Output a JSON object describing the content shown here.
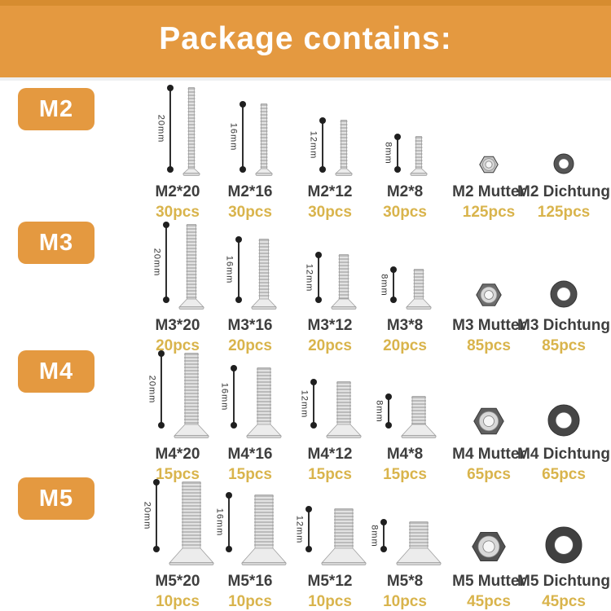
{
  "title": "Package contains:",
  "colors": {
    "banner_orange": "#e49940",
    "badge_orange": "#e49940",
    "title_text": "#ffffff",
    "item_name_text": "#3e3e3e",
    "count_text": "#d9b44c",
    "dimension_line": "#2f2f2f"
  },
  "rows": [
    {
      "badge": "M2",
      "items": [
        {
          "kind": "screw",
          "dim": "20mm",
          "name": "M2*20",
          "count": "30pcs"
        },
        {
          "kind": "screw",
          "dim": "16mm",
          "name": "M2*16",
          "count": "30pcs"
        },
        {
          "kind": "screw",
          "dim": "12mm",
          "name": "M2*12",
          "count": "30pcs"
        },
        {
          "kind": "screw",
          "dim": "8mm",
          "name": "M2*8",
          "count": "30pcs"
        },
        {
          "kind": "nut",
          "name": "M2 Mutter",
          "count": "125pcs"
        },
        {
          "kind": "washer",
          "name": "M2 Dichtung",
          "count": "125pcs"
        }
      ]
    },
    {
      "badge": "M3",
      "items": [
        {
          "kind": "screw",
          "dim": "20mm",
          "name": "M3*20",
          "count": "20pcs"
        },
        {
          "kind": "screw",
          "dim": "16mm",
          "name": "M3*16",
          "count": "20pcs"
        },
        {
          "kind": "screw",
          "dim": "12mm",
          "name": "M3*12",
          "count": "20pcs"
        },
        {
          "kind": "screw",
          "dim": "8mm",
          "name": "M3*8",
          "count": "20pcs"
        },
        {
          "kind": "nut",
          "name": "M3 Mutter",
          "count": "85pcs"
        },
        {
          "kind": "washer",
          "name": "M3 Dichtung",
          "count": "85pcs"
        }
      ]
    },
    {
      "badge": "M4",
      "items": [
        {
          "kind": "screw",
          "dim": "20mm",
          "name": "M4*20",
          "count": "15pcs"
        },
        {
          "kind": "screw",
          "dim": "16mm",
          "name": "M4*16",
          "count": "15pcs"
        },
        {
          "kind": "screw",
          "dim": "12mm",
          "name": "M4*12",
          "count": "15pcs"
        },
        {
          "kind": "screw",
          "dim": "8mm",
          "name": "M4*8",
          "count": "15pcs"
        },
        {
          "kind": "nut",
          "name": "M4 Mutter",
          "count": "65pcs"
        },
        {
          "kind": "washer",
          "name": "M4 Dichtung",
          "count": "65pcs"
        }
      ]
    },
    {
      "badge": "M5",
      "items": [
        {
          "kind": "screw",
          "dim": "20mm",
          "name": "M5*20",
          "count": "10pcs"
        },
        {
          "kind": "screw",
          "dim": "16mm",
          "name": "M5*16",
          "count": "10pcs"
        },
        {
          "kind": "screw",
          "dim": "12mm",
          "name": "M5*12",
          "count": "10pcs"
        },
        {
          "kind": "screw",
          "dim": "8mm",
          "name": "M5*8",
          "count": "10pcs"
        },
        {
          "kind": "nut",
          "name": "M5 Mutter",
          "count": "45pcs"
        },
        {
          "kind": "washer",
          "name": "M5 Dichtung",
          "count": "45pcs"
        }
      ]
    }
  ]
}
